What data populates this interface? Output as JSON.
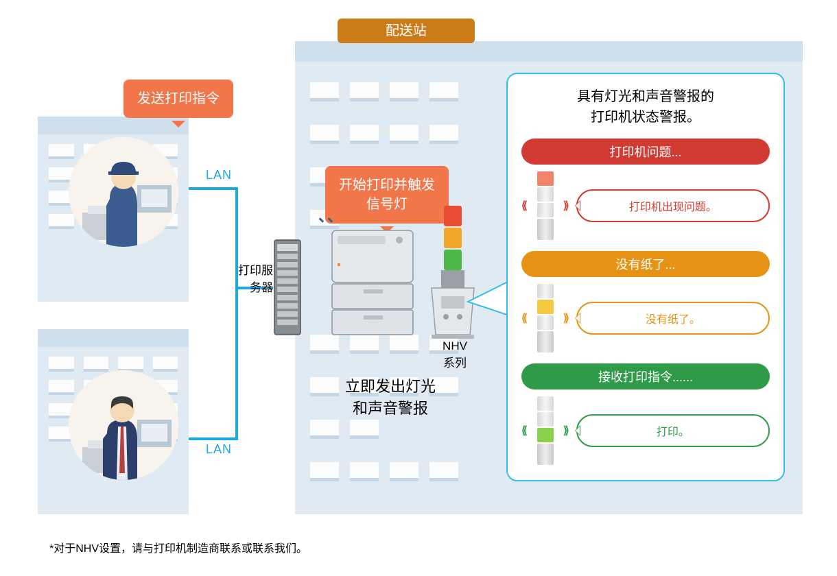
{
  "colors": {
    "orange": "#f1774a",
    "header_orange": "#cb7b1a",
    "blue_line": "#1aa9e2",
    "panel_border": "#36bde7",
    "building_light": "#dfeaf3",
    "building_roof": "#cfdfec",
    "red": "#d13b33",
    "amber": "#e69315",
    "green": "#2f9a48",
    "light_red": "#f1836b",
    "light_amber": "#f6c742",
    "light_green": "#8bd04b"
  },
  "diagram": {
    "title_badge": "配送站",
    "send_command": "发送打印指令",
    "lan_label": "LAN",
    "print_server_label": "打印服\n务器",
    "trigger_label": "开始打印并触发\n信号灯",
    "nhv_label": "NHV\n系列",
    "immediate_alarm": "立即发出灯光\n和声音警报"
  },
  "alarm_panel": {
    "title": "具有灯光和声音警报的\n打印机状态警报。",
    "items": [
      {
        "pill": "打印机问题...",
        "bubble": "打印机出现问题。",
        "pill_color": "#d13b33",
        "bubble_border": "#d13b33",
        "bubble_text_color": "#d13b33",
        "light_color": "#f1836b",
        "light_index": 0
      },
      {
        "pill": "没有纸了...",
        "bubble": "没有纸了。",
        "pill_color": "#e69315",
        "bubble_border": "#e69315",
        "bubble_text_color": "#e69315",
        "light_color": "#f6c742",
        "light_index": 1
      },
      {
        "pill": "接收打印指令......",
        "bubble": "打印。",
        "pill_color": "#2f9a48",
        "bubble_border": "#2f9a48",
        "bubble_text_color": "#2f9a48",
        "light_color": "#8bd04b",
        "light_index": 2
      }
    ]
  },
  "signal_tower": {
    "segments": [
      "#e84d33",
      "#f3a72a",
      "#4db848"
    ]
  },
  "footnote": "*对于NHV设置，请与打印机制造商联系或联系我们。"
}
